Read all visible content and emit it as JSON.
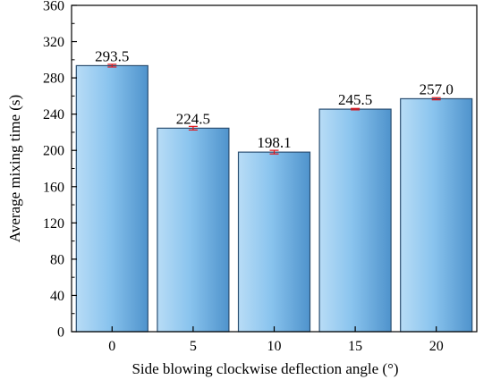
{
  "chart_data": {
    "type": "bar",
    "categories": [
      "0",
      "5",
      "10",
      "15",
      "20"
    ],
    "values": [
      293.5,
      224.5,
      198.1,
      245.5,
      257.0
    ],
    "data_labels": [
      "293.5",
      "224.5",
      "198.1",
      "245.5",
      "257.0"
    ],
    "errors": [
      1.5,
      2.0,
      2.0,
      0.8,
      1.2
    ],
    "xlabel": "Side blowing clockwise deflection angle (°)",
    "ylabel": "Average mixing time (s)",
    "ylim": [
      0,
      360
    ],
    "yticks": [
      0,
      40,
      80,
      120,
      160,
      200,
      240,
      280,
      320,
      360
    ],
    "grid": false,
    "colors": {
      "bar_light": "#b8dcf6",
      "bar_mid": "#8ac4ee",
      "bar_dark": "#4f93cc",
      "bar_edge": "#2b4f72",
      "error_bar": "#e0151b"
    }
  }
}
